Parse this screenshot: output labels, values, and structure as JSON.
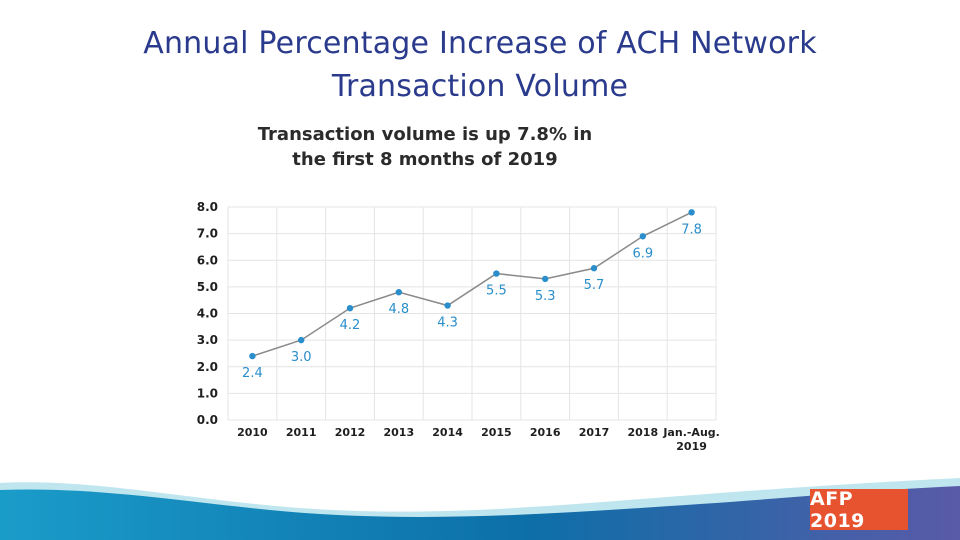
{
  "slide": {
    "title_line1": "Annual Percentage Increase of ACH Network",
    "title_line2": "Transaction Volume"
  },
  "chart_data": {
    "type": "line",
    "headline_line1": "Transaction volume is up 7.8% in",
    "headline_line2": "the first 8 months of 2019",
    "categories": [
      "2010",
      "2011",
      "2012",
      "2013",
      "2014",
      "2015",
      "2016",
      "2017",
      "2018",
      "Jan.-Aug. 2019"
    ],
    "category_lines": [
      [
        "2010"
      ],
      [
        "2011"
      ],
      [
        "2012"
      ],
      [
        "2013"
      ],
      [
        "2014"
      ],
      [
        "2015"
      ],
      [
        "2016"
      ],
      [
        "2017"
      ],
      [
        "2018"
      ],
      [
        "Jan.-Aug.",
        "2019"
      ]
    ],
    "values": [
      2.4,
      3.0,
      4.2,
      4.8,
      4.3,
      5.5,
      5.3,
      5.7,
      6.9,
      7.8
    ],
    "value_labels": [
      "2.4",
      "3.0",
      "4.2",
      "4.8",
      "4.3",
      "5.5",
      "5.3",
      "5.7",
      "6.9",
      "7.8"
    ],
    "y_ticks": [
      "0.0",
      "1.0",
      "2.0",
      "3.0",
      "4.0",
      "5.0",
      "6.0",
      "7.0",
      "8.0"
    ],
    "ylim": [
      0,
      8
    ],
    "grid": true,
    "xlabel": "",
    "ylabel": ""
  },
  "colors": {
    "title": "#2a3a8c",
    "line": "#8a8a8a",
    "marker": "#2a8ecb",
    "grid": "#e4e4e4",
    "logo_bg": "#e8532f"
  },
  "logo": {
    "text": "AFP 2019"
  }
}
